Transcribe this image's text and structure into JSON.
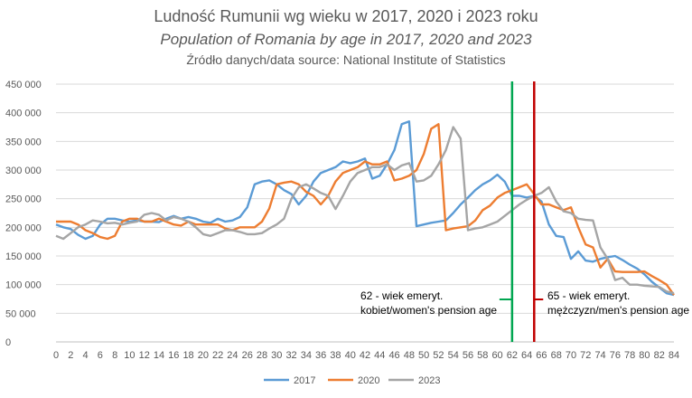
{
  "chart_data": {
    "type": "line",
    "title": "Ludność Rumunii wg wieku w 2017, 2020 i 2023 roku",
    "subtitle": "Population of Romania by age in 2017, 2020 and 2023",
    "source": "Źródło danych/data source: National Institute of Statistics",
    "xlabel": "",
    "ylabel": "",
    "x": [
      0,
      1,
      2,
      3,
      4,
      5,
      6,
      7,
      8,
      9,
      10,
      11,
      12,
      13,
      14,
      15,
      16,
      17,
      18,
      19,
      20,
      21,
      22,
      23,
      24,
      25,
      26,
      27,
      28,
      29,
      30,
      31,
      32,
      33,
      34,
      35,
      36,
      37,
      38,
      39,
      40,
      41,
      42,
      43,
      44,
      45,
      46,
      47,
      48,
      49,
      50,
      51,
      52,
      53,
      54,
      55,
      56,
      57,
      58,
      59,
      60,
      61,
      62,
      63,
      64,
      65,
      66,
      67,
      68,
      69,
      70,
      71,
      72,
      73,
      74,
      75,
      76,
      77,
      78,
      79,
      80,
      81,
      82,
      83,
      84
    ],
    "xticks": [
      0,
      2,
      4,
      6,
      8,
      10,
      12,
      14,
      16,
      18,
      20,
      22,
      24,
      26,
      28,
      30,
      32,
      34,
      36,
      38,
      40,
      42,
      44,
      46,
      48,
      50,
      52,
      54,
      56,
      58,
      60,
      62,
      64,
      66,
      68,
      70,
      72,
      74,
      76,
      78,
      80,
      82,
      84
    ],
    "xlim": [
      0,
      84
    ],
    "ylim": [
      0,
      450000
    ],
    "yticks": [
      0,
      50000,
      100000,
      150000,
      200000,
      250000,
      300000,
      350000,
      400000,
      450000
    ],
    "ytick_labels": [
      "0",
      "50 000",
      "100 000",
      "150 000",
      "200 000",
      "250 000",
      "300 000",
      "350 000",
      "400 000",
      "450 000"
    ],
    "grid": "horizontal",
    "legend_position": "bottom",
    "series": [
      {
        "name": "2017",
        "color": "#5B9BD5",
        "values": [
          205000,
          200000,
          197000,
          187000,
          180000,
          185000,
          205000,
          215000,
          215000,
          212000,
          210000,
          212000,
          210000,
          210000,
          209000,
          215000,
          220000,
          215000,
          218000,
          215000,
          210000,
          208000,
          215000,
          210000,
          212000,
          218000,
          235000,
          275000,
          280000,
          282000,
          275000,
          265000,
          258000,
          240000,
          255000,
          280000,
          295000,
          300000,
          305000,
          315000,
          312000,
          315000,
          320000,
          285000,
          290000,
          310000,
          335000,
          380000,
          385000,
          202000,
          205000,
          208000,
          210000,
          212000,
          225000,
          240000,
          252000,
          265000,
          275000,
          282000,
          292000,
          280000,
          255000,
          255000,
          252000,
          255000,
          245000,
          205000,
          185000,
          183000,
          145000,
          158000,
          142000,
          140000,
          145000,
          148000,
          150000,
          143000,
          135000,
          128000,
          118000,
          105000,
          95000,
          85000,
          82000
        ]
      },
      {
        "name": "2020",
        "color": "#ED7D31",
        "values": [
          210000,
          210000,
          210000,
          205000,
          195000,
          190000,
          183000,
          180000,
          185000,
          210000,
          215000,
          215000,
          210000,
          210000,
          215000,
          210000,
          205000,
          203000,
          210000,
          205000,
          205000,
          205000,
          205000,
          198000,
          195000,
          200000,
          200000,
          200000,
          210000,
          233000,
          275000,
          278000,
          280000,
          275000,
          262000,
          255000,
          240000,
          255000,
          280000,
          295000,
          300000,
          305000,
          315000,
          310000,
          310000,
          315000,
          282000,
          285000,
          290000,
          300000,
          328000,
          372000,
          380000,
          195000,
          198000,
          200000,
          202000,
          212000,
          230000,
          238000,
          252000,
          260000,
          265000,
          270000,
          275000,
          258000,
          240000,
          240000,
          235000,
          230000,
          235000,
          200000,
          170000,
          165000,
          130000,
          145000,
          123000,
          122000,
          122000,
          122000,
          123000,
          115000,
          108000,
          100000,
          82000
        ]
      },
      {
        "name": "2023",
        "color": "#A5A5A5",
        "values": [
          185000,
          180000,
          190000,
          200000,
          205000,
          212000,
          210000,
          207000,
          208000,
          205000,
          208000,
          210000,
          222000,
          225000,
          222000,
          212000,
          218000,
          215000,
          210000,
          200000,
          188000,
          185000,
          190000,
          195000,
          195000,
          192000,
          188000,
          188000,
          190000,
          198000,
          205000,
          215000,
          250000,
          270000,
          275000,
          268000,
          260000,
          255000,
          232000,
          255000,
          280000,
          295000,
          300000,
          305000,
          305000,
          310000,
          300000,
          308000,
          312000,
          280000,
          282000,
          290000,
          310000,
          335000,
          375000,
          355000,
          195000,
          198000,
          200000,
          205000,
          210000,
          220000,
          230000,
          240000,
          248000,
          255000,
          260000,
          270000,
          245000,
          228000,
          225000,
          215000,
          213000,
          212000,
          165000,
          145000,
          108000,
          112000,
          100000,
          100000,
          98000,
          97000,
          96000,
          88000,
          85000
        ]
      }
    ],
    "vlines": [
      {
        "x": 62,
        "color": "#00A650",
        "label_line1": "62 - wiek emeryt.",
        "label_line2": "kobiet/women's pension age"
      },
      {
        "x": 65,
        "color": "#C00000",
        "label_line1": "65 - wiek emeryt.",
        "label_line2": "mężczyzn/men's pension age"
      }
    ]
  }
}
